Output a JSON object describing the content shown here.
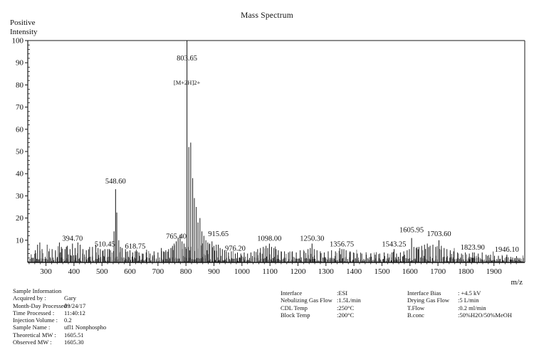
{
  "title": "Mass Spectrum",
  "axis": {
    "y_label_line1": "Positive",
    "y_label_line2": "Intensity",
    "x_label": "m/z"
  },
  "chart_data": {
    "type": "bar",
    "subtype": "mass-spectrum-stick-plot",
    "title": "Mass Spectrum",
    "xlabel": "m/z",
    "ylabel": "Positive Intensity",
    "xlim": [
      235,
      2010
    ],
    "ylim": [
      0,
      100
    ],
    "grid": false,
    "x_ticks": [
      300,
      400,
      500,
      600,
      700,
      800,
      900,
      1000,
      1100,
      1200,
      1300,
      1400,
      1500,
      1600,
      1700,
      1800,
      1900
    ],
    "y_ticks": [
      10,
      20,
      30,
      40,
      50,
      60,
      70,
      80,
      90,
      100
    ],
    "peaks_labeled": [
      {
        "mz": 394.7,
        "intensity": 8.5,
        "label": "394.70"
      },
      {
        "mz": 510.45,
        "intensity": 6,
        "label": "510.45"
      },
      {
        "mz": 548.6,
        "intensity": 33,
        "label": "548.60",
        "dy": -8
      },
      {
        "mz": 618.75,
        "intensity": 5,
        "label": "618.75"
      },
      {
        "mz": 765.4,
        "intensity": 9.5,
        "label": "765.40"
      },
      {
        "mz": 803.65,
        "intensity": 100,
        "label": "803.65",
        "label_y": 85,
        "annotation": "[M+2H]2+",
        "annotation_y": 119
      },
      {
        "mz": 915.65,
        "intensity": 8,
        "label": "915.65",
        "dy": -12
      },
      {
        "mz": 976.2,
        "intensity": 4,
        "label": "976.20"
      },
      {
        "mz": 1098.0,
        "intensity": 8.5,
        "label": "1098.00"
      },
      {
        "mz": 1250.3,
        "intensity": 8.5,
        "label": "1250.30"
      },
      {
        "mz": 1356.75,
        "intensity": 6,
        "label": "1356.75"
      },
      {
        "mz": 1543.25,
        "intensity": 6,
        "label": "1543.25"
      },
      {
        "mz": 1605.95,
        "intensity": 11,
        "label": "1605.95",
        "dy": -8
      },
      {
        "mz": 1703.6,
        "intensity": 10,
        "label": "1703.60",
        "dy": -6
      },
      {
        "mz": 1823.9,
        "intensity": 4.5,
        "label": "1823.90"
      },
      {
        "mz": 1946.1,
        "intensity": 3.5,
        "label": "1946.10"
      }
    ],
    "peaks_unlabeled": [
      [
        262,
        5.5
      ],
      [
        270,
        8
      ],
      [
        278,
        9
      ],
      [
        286,
        6
      ],
      [
        310,
        5
      ],
      [
        322,
        6
      ],
      [
        334,
        5.5
      ],
      [
        348,
        9
      ],
      [
        355,
        7
      ],
      [
        368,
        6
      ],
      [
        376,
        7.5
      ],
      [
        386,
        6
      ],
      [
        404,
        6.5
      ],
      [
        414,
        9
      ],
      [
        422,
        8
      ],
      [
        432,
        6
      ],
      [
        444,
        5.5
      ],
      [
        456,
        7
      ],
      [
        466,
        7
      ],
      [
        478,
        8
      ],
      [
        486,
        6.5
      ],
      [
        494,
        6
      ],
      [
        504,
        5.5
      ],
      [
        520,
        6
      ],
      [
        530,
        5.5
      ],
      [
        543,
        14
      ],
      [
        553,
        22.5
      ],
      [
        560,
        10
      ],
      [
        566,
        7
      ],
      [
        572,
        6.5
      ],
      [
        584,
        6
      ],
      [
        592,
        5
      ],
      [
        600,
        5.5
      ],
      [
        610,
        4.5
      ],
      [
        626,
        5
      ],
      [
        632,
        4.5
      ],
      [
        644,
        4
      ],
      [
        658,
        4.5
      ],
      [
        672,
        4
      ],
      [
        686,
        5
      ],
      [
        700,
        4.5
      ],
      [
        712,
        6.5
      ],
      [
        720,
        5
      ],
      [
        728,
        5.5
      ],
      [
        738,
        6
      ],
      [
        746,
        6.5
      ],
      [
        752,
        7.5
      ],
      [
        758,
        8.5
      ],
      [
        772,
        11
      ],
      [
        779,
        12.5
      ],
      [
        786,
        9.5
      ],
      [
        793,
        8.5
      ],
      [
        798,
        7
      ],
      [
        810,
        52
      ],
      [
        817,
        54
      ],
      [
        824,
        38
      ],
      [
        830,
        29
      ],
      [
        837,
        25
      ],
      [
        843,
        18
      ],
      [
        850,
        20
      ],
      [
        857,
        14
      ],
      [
        864,
        12
      ],
      [
        871,
        10
      ],
      [
        878,
        9
      ],
      [
        885,
        8.5
      ],
      [
        893,
        9.5
      ],
      [
        900,
        7.5
      ],
      [
        908,
        8
      ],
      [
        922,
        6.5
      ],
      [
        930,
        6
      ],
      [
        938,
        5.5
      ],
      [
        944,
        5
      ],
      [
        952,
        4.5
      ],
      [
        962,
        5
      ],
      [
        984,
        4.5
      ],
      [
        996,
        4
      ],
      [
        1008,
        4.5
      ],
      [
        1020,
        4
      ],
      [
        1032,
        4.5
      ],
      [
        1044,
        5
      ],
      [
        1056,
        6
      ],
      [
        1066,
        6.5
      ],
      [
        1076,
        7
      ],
      [
        1086,
        7.5
      ],
      [
        1092,
        6.5
      ],
      [
        1106,
        7
      ],
      [
        1114,
        6.5
      ],
      [
        1122,
        6
      ],
      [
        1130,
        5.5
      ],
      [
        1140,
        5
      ],
      [
        1152,
        5
      ],
      [
        1166,
        4.5
      ],
      [
        1180,
        5
      ],
      [
        1194,
        4.5
      ],
      [
        1208,
        5.5
      ],
      [
        1222,
        5
      ],
      [
        1236,
        6
      ],
      [
        1244,
        6.5
      ],
      [
        1258,
        6
      ],
      [
        1268,
        5.5
      ],
      [
        1280,
        5
      ],
      [
        1294,
        4.5
      ],
      [
        1308,
        5
      ],
      [
        1320,
        5.5
      ],
      [
        1334,
        5
      ],
      [
        1349,
        6.5
      ],
      [
        1364,
        6
      ],
      [
        1372,
        5.5
      ],
      [
        1386,
        5
      ],
      [
        1398,
        4.5
      ],
      [
        1412,
        4
      ],
      [
        1428,
        4
      ],
      [
        1444,
        3.5
      ],
      [
        1460,
        4
      ],
      [
        1476,
        3.5
      ],
      [
        1492,
        4
      ],
      [
        1508,
        4.5
      ],
      [
        1521,
        4
      ],
      [
        1536,
        4.5
      ],
      [
        1552,
        4
      ],
      [
        1566,
        4.5
      ],
      [
        1578,
        5
      ],
      [
        1590,
        5.5
      ],
      [
        1598,
        6
      ],
      [
        1614,
        7
      ],
      [
        1622,
        6.5
      ],
      [
        1632,
        7
      ],
      [
        1642,
        7.5
      ],
      [
        1652,
        8
      ],
      [
        1662,
        8.5
      ],
      [
        1672,
        7.5
      ],
      [
        1682,
        8
      ],
      [
        1692,
        7
      ],
      [
        1712,
        7.5
      ],
      [
        1722,
        6.5
      ],
      [
        1732,
        6
      ],
      [
        1744,
        5.5
      ],
      [
        1756,
        5
      ],
      [
        1770,
        4.5
      ],
      [
        1784,
        4
      ],
      [
        1798,
        4.5
      ],
      [
        1812,
        4
      ],
      [
        1830,
        4.5
      ],
      [
        1844,
        4
      ],
      [
        1858,
        4.5
      ],
      [
        1872,
        3.5
      ],
      [
        1888,
        3.5
      ],
      [
        1902,
        3
      ],
      [
        1916,
        3
      ],
      [
        1930,
        3
      ],
      [
        1944,
        2.5
      ],
      [
        1960,
        2.5
      ],
      [
        1976,
        2
      ],
      [
        1992,
        2
      ]
    ],
    "noise": {
      "seed": 7,
      "step": 6,
      "micro_step": 5.6,
      "micro_max": 2.2,
      "regions": [
        {
          "from": 235,
          "to": 300,
          "max": 6
        },
        {
          "from": 300,
          "to": 460,
          "max": 8
        },
        {
          "from": 460,
          "to": 545,
          "max": 7
        },
        {
          "from": 545,
          "to": 660,
          "max": 6
        },
        {
          "from": 660,
          "to": 740,
          "max": 5
        },
        {
          "from": 740,
          "to": 800,
          "max": 8.5
        },
        {
          "from": 800,
          "to": 915,
          "max": 9
        },
        {
          "from": 915,
          "to": 1050,
          "max": 5
        },
        {
          "from": 1050,
          "to": 1150,
          "max": 7
        },
        {
          "from": 1150,
          "to": 1420,
          "max": 5.5
        },
        {
          "from": 1420,
          "to": 1600,
          "max": 4.5
        },
        {
          "from": 1600,
          "to": 1760,
          "max": 7
        },
        {
          "from": 1760,
          "to": 1905,
          "max": 4.5
        },
        {
          "from": 1905,
          "to": 2010,
          "max": 3
        }
      ]
    },
    "colors": {
      "stick": "#111111",
      "axis": "#1a1a1a",
      "text": "#111111"
    }
  },
  "info": {
    "sample": {
      "header": "Sample Information",
      "rows": [
        {
          "label": "Acquired by :",
          "value": "Gary"
        },
        {
          "label": "Month-Day Processed :",
          "value": "09/24/17"
        },
        {
          "label": "Time Processed :",
          "value": "11:40:12"
        },
        {
          "label": "Injection Volume :",
          "value": "0.2"
        },
        {
          "label": "Sample Name :",
          "value": "ufl1 Nonphospho"
        },
        {
          "label": "Theoretical MW :",
          "value": "1605.51"
        },
        {
          "label": "Observed MW :",
          "value": "1605.30"
        }
      ]
    },
    "instrument": {
      "rows": [
        {
          "label": "Interface",
          "value": ":ESI"
        },
        {
          "label": "Nebulizing Gas Flow",
          "value": ":1.5L/min"
        },
        {
          "label": "CDL Temp",
          "value": ":250°C"
        },
        {
          "label": "Block Temp",
          "value": ":200°C"
        }
      ]
    },
    "conditions": {
      "rows": [
        {
          "label": "Interface Bias",
          "value": ": +4.5 kV"
        },
        {
          "label": "Drying Gas Flow",
          "value": ":5 L/min"
        },
        {
          "label": "T.Flow",
          "value": ":0.2 ml/min"
        },
        {
          "label": "B.conc",
          "value": ":50%H2O/50%MeOH"
        }
      ]
    }
  }
}
